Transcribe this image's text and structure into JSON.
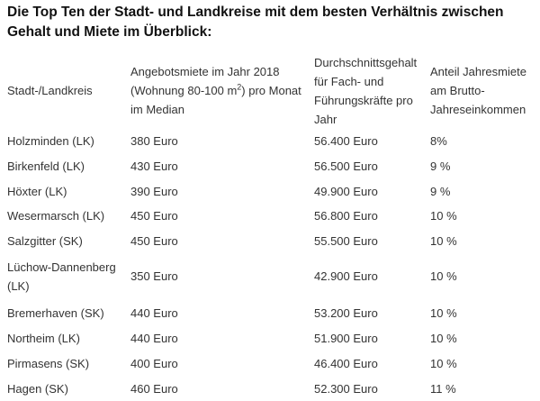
{
  "title": "Die Top Ten der Stadt- und Landkreise mit dem besten Verhältnis zwischen Gehalt und Miete im Überblick:",
  "headers": {
    "col0": "Stadt-/Landkreis",
    "col1_pre": "Angebotsmiete im Jahr 2018 (Wohnung 80-100 m",
    "col1_sup": "2",
    "col1_post": ") pro Monat im Median",
    "col2": "Durchschnittsgehalt für Fach- und Führungskräfte pro Jahr",
    "col3": "Anteil Jahresmiete am Brutto-Jahreseinkommen"
  },
  "rows": [
    {
      "region": "Holzminden (LK)",
      "rent": "380 Euro",
      "salary": "56.400 Euro",
      "share": "8%"
    },
    {
      "region": "Birkenfeld (LK)",
      "rent": "430 Euro",
      "salary": "56.500 Euro",
      "share": "9 %"
    },
    {
      "region": "Höxter (LK)",
      "rent": "390 Euro",
      "salary": "49.900 Euro",
      "share": "9 %"
    },
    {
      "region": "Wesermarsch (LK)",
      "rent": "450 Euro",
      "salary": "56.800 Euro",
      "share": "10 %"
    },
    {
      "region": "Salzgitter (SK)",
      "rent": "450 Euro",
      "salary": "55.500 Euro",
      "share": "10 %"
    },
    {
      "region": "Lüchow-Dannenberg (LK)",
      "rent": "350 Euro",
      "salary": "42.900 Euro",
      "share": "10 %"
    },
    {
      "region": "Bremerhaven (SK)",
      "rent": "440 Euro",
      "salary": "53.200 Euro",
      "share": "10 %"
    },
    {
      "region": "Northeim (LK)",
      "rent": "440 Euro",
      "salary": "51.900 Euro",
      "share": "10 %"
    },
    {
      "region": "Pirmasens (SK)",
      "rent": "400 Euro",
      "salary": "46.400 Euro",
      "share": "10 %"
    },
    {
      "region": "Hagen (SK)",
      "rent": "460 Euro",
      "salary": "52.300 Euro",
      "share": "11 %"
    }
  ]
}
